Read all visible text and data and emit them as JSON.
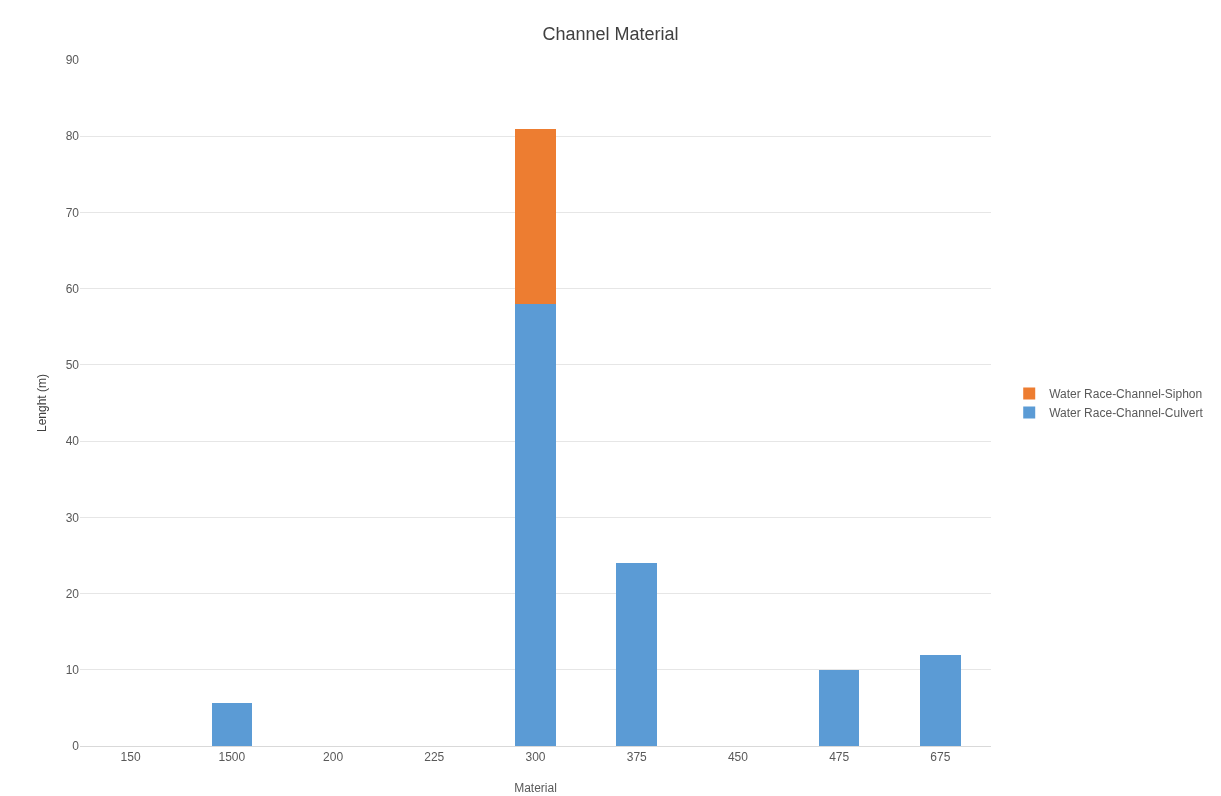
{
  "chart_data": {
    "type": "bar",
    "title": "Channel Material",
    "xlabel": "Material",
    "ylabel": "Lenght (m)",
    "categories": [
      "150",
      "1500",
      "200",
      "225",
      "300",
      "375",
      "450",
      "475",
      "675"
    ],
    "stacked": true,
    "series": [
      {
        "name": "Water Race-Channel-Culvert",
        "color": "#5b9bd5",
        "values": [
          0,
          5.6,
          0,
          0,
          58,
          24,
          0,
          10,
          12
        ]
      },
      {
        "name": "Water Race-Channel-Siphon",
        "color": "#ed7d31",
        "values": [
          null,
          null,
          null,
          null,
          23,
          null,
          null,
          null,
          null
        ]
      }
    ],
    "ylim": [
      0,
      90
    ],
    "yticks": [
      0,
      10,
      20,
      30,
      40,
      50,
      60,
      70,
      80,
      90
    ],
    "grid": "y",
    "legend": "right"
  }
}
